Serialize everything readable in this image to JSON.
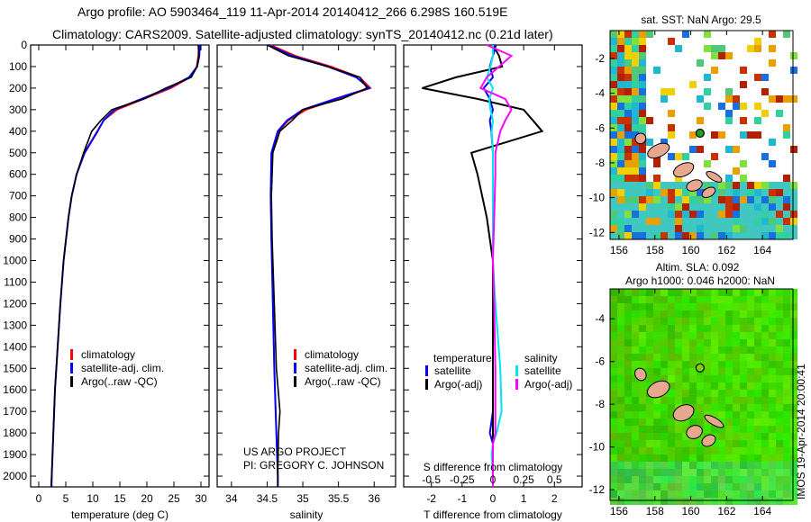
{
  "title_line1": "Argo profile: AO 5903464_119 11-Apr-2014 20140412_266 6.298S 160.519E",
  "title_line2": "Climatology: CARS2009. Satellite-adjusted climatology: synTS_20140412.nc (0.21d later)",
  "colors": {
    "climatology": "#ff0000",
    "satellite": "#0000ff",
    "argo": "#000000",
    "sal_satellite": "#00e5ee",
    "sal_argo": "#ff00ff"
  },
  "chart_data": [
    {
      "type": "line",
      "title": "",
      "xlabel": "temperature (deg C)",
      "ylabel": "",
      "xlim": [
        -1.5,
        31.5
      ],
      "ylim": [
        2050,
        0
      ],
      "xticks": [
        0,
        5,
        10,
        15,
        20,
        25,
        30
      ],
      "yticks": [
        0,
        100,
        200,
        300,
        400,
        500,
        600,
        700,
        800,
        900,
        1000,
        1100,
        1200,
        1300,
        1400,
        1500,
        1600,
        1700,
        1800,
        1900,
        2000
      ],
      "depth": [
        0,
        50,
        100,
        150,
        200,
        250,
        300,
        350,
        400,
        500,
        600,
        700,
        800,
        1000,
        1200,
        1400,
        1600,
        1800,
        2000,
        2050
      ],
      "series": [
        {
          "name": "climatology",
          "values": [
            29.6,
            29.5,
            29.2,
            28,
            24.5,
            19.5,
            14.5,
            12,
            10.8,
            8.4,
            7.0,
            6.1,
            5.5,
            4.6,
            4.0,
            3.5,
            3.0,
            2.7,
            2.4,
            2.3
          ]
        },
        {
          "name": "satellite-adj. clim.",
          "values": [
            29.8,
            29.7,
            29.3,
            27.8,
            24,
            19,
            14,
            12,
            10.9,
            8.5,
            7.0,
            6.1,
            5.5,
            4.6,
            4.0,
            3.5,
            3.0,
            2.7,
            2.4,
            2.3
          ]
        },
        {
          "name": "Argo(..raw -QC)",
          "values": [
            29.5,
            29.6,
            29.3,
            28.2,
            23.5,
            19.5,
            13.5,
            11.5,
            9.8,
            8.3,
            7.0,
            6.1,
            5.5,
            4.6,
            4.0,
            3.5,
            3.0,
            2.7,
            2.4,
            2.4
          ]
        }
      ],
      "legend": [
        "climatology",
        "satellite-adj. clim.",
        "Argo(..raw -QC)"
      ],
      "legend_placement": "lower-right"
    },
    {
      "type": "line",
      "xlabel": "salinity",
      "xlim": [
        33.8,
        36.3
      ],
      "ylim": [
        2050,
        0
      ],
      "xticks": [
        34,
        34.5,
        35,
        35.5,
        36
      ],
      "xtick_labels": [
        "34",
        "34.5",
        "35",
        "35.5",
        "36"
      ],
      "depth": [
        0,
        50,
        100,
        150,
        200,
        250,
        300,
        350,
        400,
        500,
        700,
        900,
        1200,
        1500,
        1700,
        1800,
        2000,
        2050
      ],
      "series": [
        {
          "name": "climatology",
          "values": [
            34.55,
            34.9,
            35.4,
            35.8,
            35.95,
            35.5,
            35.05,
            34.8,
            34.66,
            34.57,
            34.55,
            34.56,
            34.58,
            34.6,
            34.62,
            34.63,
            34.65,
            34.65
          ]
        },
        {
          "name": "satellite-adj. clim.",
          "values": [
            34.52,
            34.85,
            35.35,
            35.75,
            35.93,
            35.45,
            35.0,
            34.78,
            34.65,
            34.56,
            34.55,
            34.56,
            34.58,
            34.6,
            34.62,
            34.63,
            34.65,
            34.65
          ]
        },
        {
          "name": "Argo(..raw -QC)",
          "values": [
            34.5,
            34.8,
            35.35,
            35.8,
            35.9,
            35.55,
            35.0,
            34.85,
            34.68,
            34.58,
            34.56,
            34.57,
            34.6,
            34.63,
            34.68,
            34.66,
            34.65,
            34.65
          ]
        }
      ],
      "legend": [
        "climatology",
        "satellite-adj. clim.",
        "Argo(..raw -QC)"
      ],
      "legend_placement": "lower-right",
      "annotation": [
        "US ARGO PROJECT",
        "PI: GREGORY C. JOHNSON"
      ]
    },
    {
      "type": "line",
      "xlabel": "T difference from climatology",
      "x2label": "S difference from climatology",
      "xlim": [
        -2.9,
        2.9
      ],
      "x2lim": [
        -0.725,
        0.725
      ],
      "ylim": [
        2050,
        0
      ],
      "xticks": [
        -2,
        -1,
        0,
        1,
        2
      ],
      "x2ticks": [
        -0.5,
        -0.25,
        0,
        0.25,
        0.5
      ],
      "x2tick_labels": [
        "-0.5",
        "-0.25",
        "0",
        "0.25",
        "0.5"
      ],
      "depth": [
        0,
        50,
        100,
        150,
        200,
        250,
        300,
        350,
        400,
        500,
        600,
        800,
        1000,
        1200,
        1500,
        1700,
        1800,
        1850,
        1900,
        2000,
        2050
      ],
      "series": [
        {
          "name": "temperature satellite",
          "axis": "T",
          "values": [
            0.1,
            0,
            -0.1,
            0,
            -0.3,
            -0.1,
            0,
            -0.1,
            -0.05,
            0,
            0,
            0,
            0,
            0,
            0,
            0,
            -0.1,
            0,
            0,
            0,
            0
          ]
        },
        {
          "name": "temperature Argo(-adj)",
          "axis": "T",
          "values": [
            0,
            0.2,
            0.3,
            -1.2,
            -2.3,
            -0.5,
            1.0,
            1.3,
            1.6,
            -0.7,
            -0.5,
            -0.2,
            0,
            0,
            0,
            0,
            0,
            0,
            0,
            0,
            0
          ]
        },
        {
          "name": "salinity satellite",
          "axis": "S",
          "values": [
            0,
            0,
            -0.02,
            -0.05,
            0,
            -0.03,
            -0.02,
            0,
            -0.01,
            0,
            0,
            0,
            0,
            0.02,
            0.06,
            0.07,
            0.03,
            0,
            -0.01,
            0,
            0
          ]
        },
        {
          "name": "salinity Argo(-adj)",
          "axis": "S",
          "values": [
            -0.05,
            0.15,
            0.05,
            -0.05,
            -0.1,
            0.1,
            0.15,
            0.1,
            0.06,
            0.02,
            0.02,
            0.01,
            0,
            0.01,
            0.02,
            0.02,
            0.02,
            0,
            0,
            0,
            0
          ]
        }
      ],
      "legend_headers": [
        "temperature",
        "salinity"
      ],
      "legend": [
        "satellite",
        "Argo(-adj)",
        "satellite",
        "Argo(-adj)"
      ],
      "legend_placement": "lower-right"
    }
  ],
  "maps": [
    {
      "title": "sat. SST: NaN Argo: 29.5",
      "xticks": [
        156,
        158,
        160,
        162,
        164
      ],
      "yticks": [
        -2,
        -4,
        -6,
        -8,
        -10,
        -12
      ]
    },
    {
      "title1": "Altim. SLA: 0.092",
      "title2": "Argo h1000: 0.046 h2000: NaN",
      "xticks": [
        156,
        158,
        160,
        162,
        164
      ],
      "yticks": [
        -4,
        -6,
        -8,
        -10,
        -12
      ]
    }
  ],
  "argo_position": {
    "lon": 160.519,
    "lat": -6.298
  },
  "footer_stamp": "IMOS 19-Apr-2014 20:00:41"
}
